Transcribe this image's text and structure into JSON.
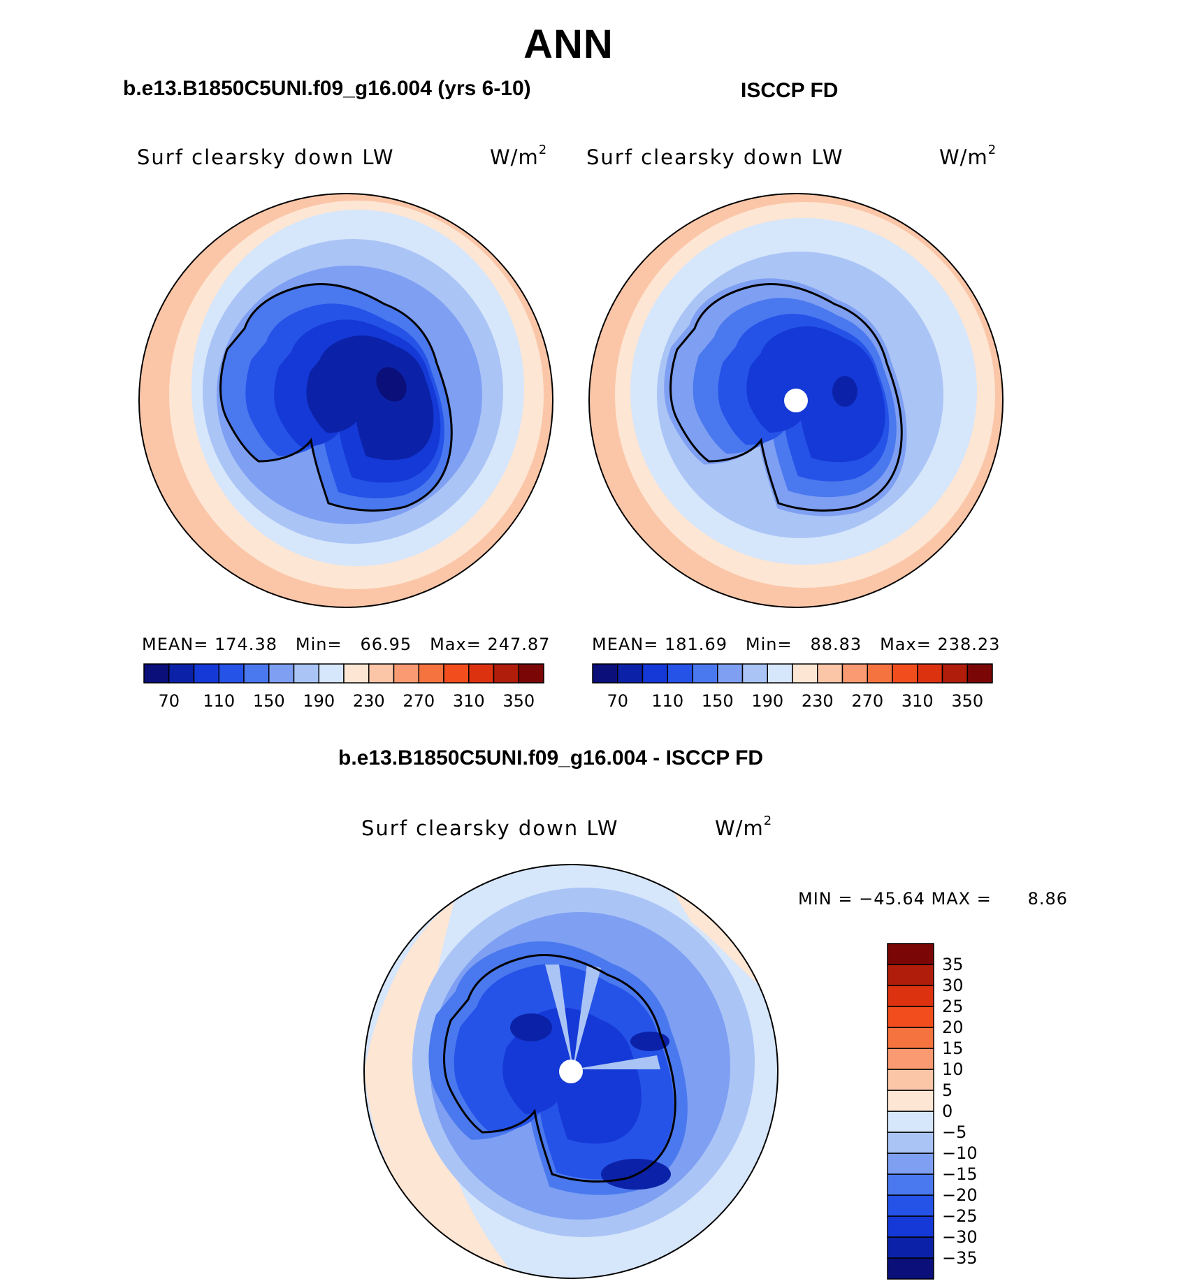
{
  "header": {
    "season": "ANN",
    "left_title": "b.e13.B1850C5UNI.f09_g16.004 (yrs 6-10)",
    "right_title": "ISCCP FD",
    "diff_title": "b.e13.B1850C5UNI.f09_g16.004 - ISCCP FD"
  },
  "panels": {
    "model": {
      "variable": "Surf clearsky down LW",
      "units": "W/m",
      "units_exp": "2",
      "mean_label": "MEAN=",
      "mean": "174.38",
      "min_label": "Min=",
      "min": "66.95",
      "max_label": "Max=",
      "max": "247.87"
    },
    "obs": {
      "variable": "Surf clearsky down LW",
      "units": "W/m",
      "units_exp": "2",
      "mean_label": "MEAN=",
      "mean": "181.69",
      "min_label": "Min=",
      "min": "88.83",
      "max_label": "Max=",
      "max": "238.23"
    },
    "diff": {
      "variable": "Surf clearsky down LW",
      "units": "W/m",
      "units_exp": "2",
      "stats": "MIN = −45.64 MAX =      8.86"
    }
  },
  "colorbars": {
    "main": {
      "colors": [
        "#0a0f7a",
        "#0b22a8",
        "#1539d6",
        "#2553e8",
        "#4a78ee",
        "#7e9ff2",
        "#aac4f6",
        "#d6e6fb",
        "#fde6d4",
        "#fbc6a8",
        "#f99a72",
        "#f5733f",
        "#f24d1d",
        "#dc3210",
        "#b11d0b",
        "#7a0606"
      ],
      "labels": [
        "70",
        "110",
        "150",
        "190",
        "230",
        "270",
        "310",
        "350"
      ]
    },
    "diff": {
      "colors": [
        "#0a0f7a",
        "#0b22a8",
        "#1539d6",
        "#2553e8",
        "#4a78ee",
        "#7e9ff2",
        "#aac4f6",
        "#d6e6fb",
        "#fde6d4",
        "#fbc6a8",
        "#f99a72",
        "#f5733f",
        "#f24d1d",
        "#dc3210",
        "#b11d0b",
        "#7a0606"
      ],
      "labels": [
        "35",
        "30",
        "25",
        "20",
        "15",
        "10",
        "5",
        "0",
        "−5",
        "−10",
        "−15",
        "−20",
        "−25",
        "−30",
        "−35"
      ]
    }
  }
}
